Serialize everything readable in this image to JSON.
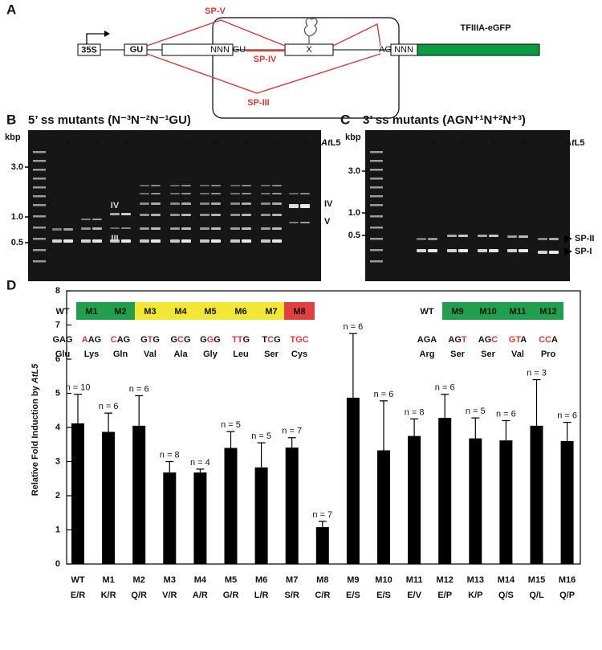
{
  "panel_a": {
    "label": "A",
    "promoter": "35S",
    "gu1": "GU",
    "nnn1": "NNN",
    "gu2": "GU",
    "x": "X",
    "ag": "AG",
    "nnn2": "NNN",
    "reporter": "TFIIIA-eGFP",
    "sp_v": "SP-V",
    "sp_iv": "SP-IV",
    "sp_iii": "SP-III"
  },
  "panel_b": {
    "label": "B",
    "title": "5’ ss mutants (N⁻³N⁻²N⁻¹GU)",
    "kbp": "kbp",
    "ladder": [
      "3.0",
      "1.0",
      "0.5"
    ],
    "signs": [
      "-",
      "+"
    ],
    "treatment_prefix": "At",
    "treatment_suffix": "L5",
    "band_labels": [
      "IV",
      "III",
      "IV",
      "V"
    ],
    "samples": [
      {
        "name": "WT",
        "color": null,
        "codon": [
          "G",
          "A",
          "G"
        ],
        "changed": [],
        "aa": "Glu"
      },
      {
        "name": "M1",
        "color": "#20a04c",
        "codon": [
          "A",
          "A",
          "G"
        ],
        "changed": [
          0
        ],
        "aa": "Lys"
      },
      {
        "name": "M2",
        "color": "#20a04c",
        "codon": [
          "C",
          "A",
          "G"
        ],
        "changed": [
          0
        ],
        "aa": "Gln"
      },
      {
        "name": "M3",
        "color": "#f2e735",
        "codon": [
          "G",
          "T",
          "G"
        ],
        "changed": [
          1
        ],
        "aa": "Val"
      },
      {
        "name": "M4",
        "color": "#f2e735",
        "codon": [
          "G",
          "C",
          "G"
        ],
        "changed": [
          1
        ],
        "aa": "Ala"
      },
      {
        "name": "M5",
        "color": "#f2e735",
        "codon": [
          "G",
          "G",
          "G"
        ],
        "changed": [
          1
        ],
        "aa": "Gly"
      },
      {
        "name": "M6",
        "color": "#f2e735",
        "codon": [
          "T",
          "T",
          "G"
        ],
        "changed": [
          0,
          1
        ],
        "aa": "Leu"
      },
      {
        "name": "M7",
        "color": "#f2e735",
        "codon": [
          "T",
          "C",
          "G"
        ],
        "changed": [
          1
        ],
        "aa": "Ser"
      },
      {
        "name": "M8",
        "color": "#e04040",
        "codon": [
          "T",
          "G",
          "C"
        ],
        "changed": [
          0,
          1,
          2
        ],
        "aa": "Cys"
      }
    ]
  },
  "panel_c": {
    "label": "C",
    "title": "3’ ss mutants (AGN⁺¹N⁺²N⁺³)",
    "kbp": "kbp",
    "ladder": [
      "3.0",
      "1.0",
      "0.5"
    ],
    "signs": [
      "-",
      "+"
    ],
    "treatment_prefix": "At",
    "treatment_suffix": "L5",
    "band_labels": [
      "SP-II",
      "SP-I"
    ],
    "samples": [
      {
        "name": "WT",
        "color": null,
        "codon": [
          "A",
          "G",
          "A"
        ],
        "changed": [],
        "aa": "Arg"
      },
      {
        "name": "M9",
        "color": "#20a04c",
        "codon": [
          "A",
          "G",
          "T"
        ],
        "changed": [
          2
        ],
        "aa": "Ser"
      },
      {
        "name": "M10",
        "color": "#20a04c",
        "codon": [
          "A",
          "G",
          "C"
        ],
        "changed": [
          2
        ],
        "aa": "Ser"
      },
      {
        "name": "M11",
        "color": "#20a04c",
        "codon": [
          "G",
          "T",
          "A"
        ],
        "changed": [
          0,
          1
        ],
        "aa": "Val"
      },
      {
        "name": "M12",
        "color": "#20a04c",
        "codon": [
          "C",
          "C",
          "A"
        ],
        "changed": [
          0,
          1
        ],
        "aa": "Pro"
      }
    ]
  },
  "panel_d": {
    "label": "D"
  },
  "chart_data": {
    "type": "bar",
    "y_label": "Relative Fold Induction by ",
    "y_label_treatment": "AtL5",
    "categories": [
      "WT",
      "M1",
      "M2",
      "M3",
      "M4",
      "M5",
      "M6",
      "M7",
      "M8",
      "M9",
      "M10",
      "M11",
      "M12",
      "M13",
      "M14",
      "M15",
      "M16"
    ],
    "sublabels": [
      "E/R",
      "K/R",
      "Q/R",
      "V/R",
      "A/R",
      "G/R",
      "L/R",
      "S/R",
      "C/R",
      "E/S",
      "E/S",
      "E/V",
      "E/P",
      "K/P",
      "Q/S",
      "Q/L",
      "Q/P"
    ],
    "sublabel_colors": [
      "#1e7a3c",
      "#1e7a3c",
      "#1e7a3c",
      "#b5a300",
      "#b5a300",
      "#b5a300",
      "#b5a300",
      "#b5a300",
      "#8b1a1a",
      "#1e7a3c",
      "#1e7a3c",
      "#1e7a3c",
      "#1e7a3c",
      "#1e7a3c",
      "#1e7a3c",
      "#1e7a3c",
      "#1e7a3c"
    ],
    "values": [
      4.12,
      3.87,
      4.05,
      2.68,
      2.68,
      3.4,
      2.83,
      3.41,
      1.08,
      4.87,
      3.33,
      3.75,
      4.28,
      3.68,
      3.62,
      4.05,
      3.6
    ],
    "errors": [
      0.85,
      0.55,
      0.88,
      0.32,
      0.1,
      0.48,
      0.72,
      0.29,
      0.17,
      1.88,
      1.45,
      0.5,
      0.69,
      0.6,
      0.58,
      1.35,
      0.55
    ],
    "n_labels": [
      "n = 10",
      "n = 6",
      "n = 6",
      "n = 8",
      "n = 4",
      "n = 5",
      "n = 5",
      "n = 7",
      "n = 7",
      "n = 6",
      "n = 6",
      "n = 8",
      "n = 6",
      "n = 5",
      "n = 6",
      "n = 3",
      "n = 6"
    ],
    "color": "#000000",
    "ylim": [
      0,
      8
    ],
    "yticks": [
      0,
      1,
      2,
      3,
      4,
      5,
      6,
      7,
      8
    ]
  }
}
